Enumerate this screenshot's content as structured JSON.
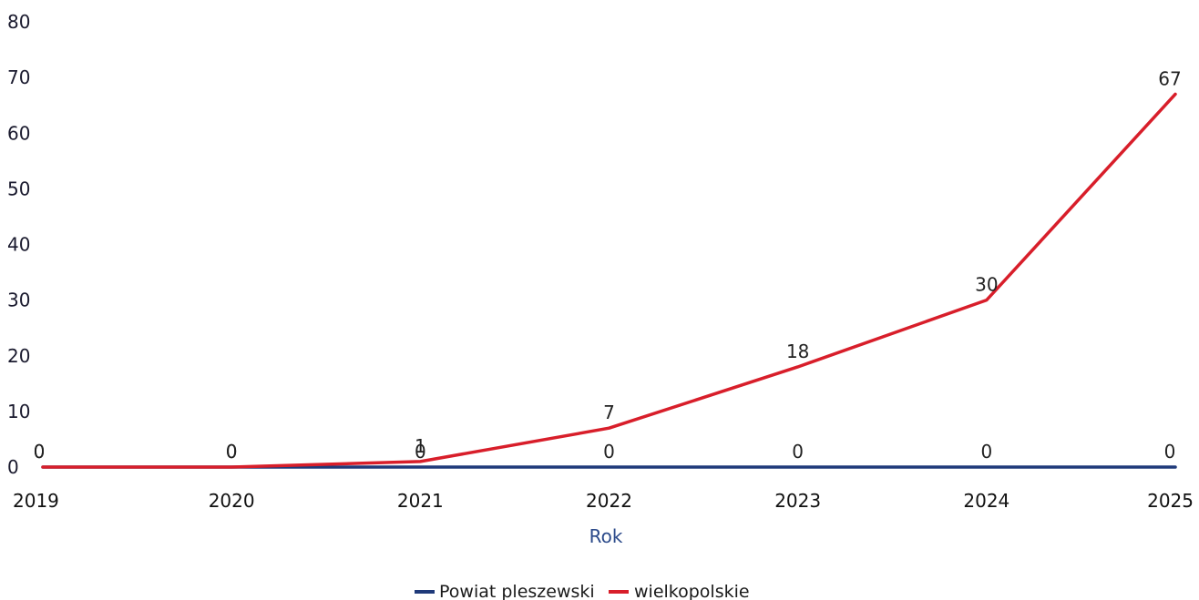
{
  "chart_data": {
    "type": "line",
    "x": [
      "2019",
      "2020",
      "2021",
      "2022",
      "2023",
      "2024",
      "2025"
    ],
    "xlabel": "Rok",
    "ylabel": "",
    "ylim": [
      0,
      80
    ],
    "yticks": [
      0,
      10,
      20,
      30,
      40,
      50,
      60,
      70,
      80
    ],
    "grid": false,
    "legend_placement": "bottom-center",
    "series": [
      {
        "name": "Powiat pleszewski",
        "color": "#1f3a7a",
        "values": [
          0,
          0,
          0,
          0,
          0,
          0,
          0
        ]
      },
      {
        "name": "wielkopolskie",
        "color": "#d81e2a",
        "values": [
          0,
          0,
          1,
          7,
          18,
          30,
          67
        ]
      }
    ]
  }
}
